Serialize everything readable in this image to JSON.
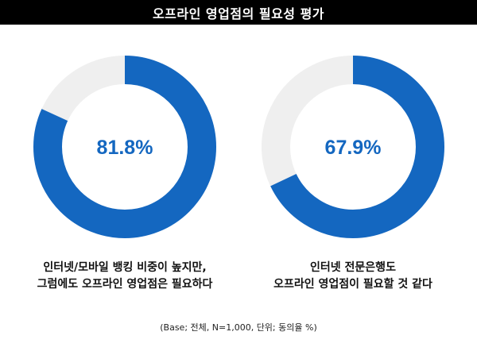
{
  "title": "오프라인 영업점의 필요성 평가",
  "colors": {
    "filled": "#1467C0",
    "remainder": "#EFEFEF",
    "title_bar": "#000000",
    "value_text": "#1467C0"
  },
  "chart_data": [
    {
      "type": "pie",
      "style": "donut",
      "value": 81.8,
      "value_label": "81.8%",
      "remainder": 18.2,
      "caption_lines": [
        "인터넷/모바일 뱅킹 비중이 높지만,",
        "그럼에도 오프라인 영업점은 필요하다"
      ]
    },
    {
      "type": "pie",
      "style": "donut",
      "value": 67.9,
      "value_label": "67.9%",
      "remainder": 32.1,
      "caption_lines": [
        "인터넷 전문은행도",
        "오프라인 영업점이 필요할 것 같다"
      ]
    }
  ],
  "footnote": "(Base; 전체, N=1,000, 단위; 동의율 %)"
}
